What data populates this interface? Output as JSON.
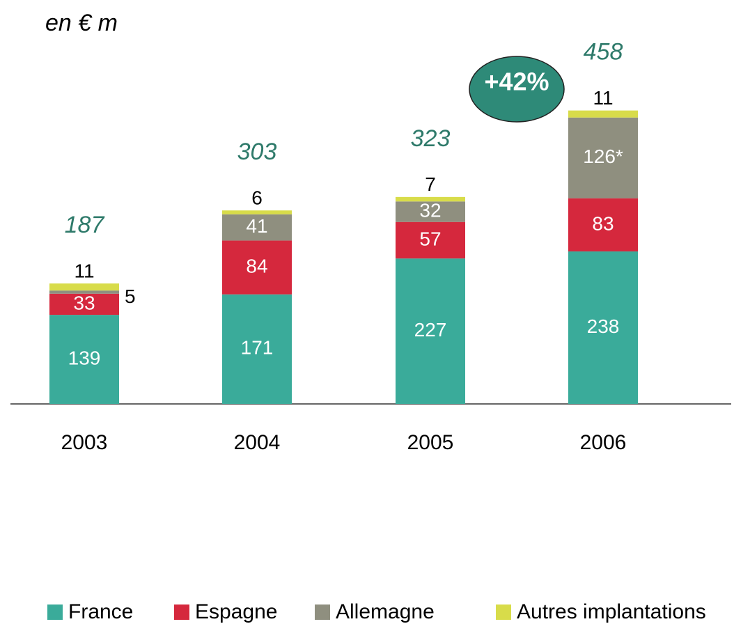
{
  "chart_data": {
    "type": "stacked_bar",
    "unit_label": "en € m",
    "categories": [
      "2003",
      "2004",
      "2005",
      "2006"
    ],
    "series": [
      {
        "name": "France",
        "color": "#3aab9a",
        "values": [
          139,
          171,
          227,
          238
        ]
      },
      {
        "name": "Espagne",
        "color": "#d5283d",
        "values": [
          33,
          84,
          57,
          83
        ]
      },
      {
        "name": "Allemagne",
        "color": "#8f8f7f",
        "values": [
          5,
          41,
          32,
          126
        ],
        "value_labels": [
          "5",
          "41",
          "32",
          "126*"
        ]
      },
      {
        "name": "Autres implantations",
        "color": "#d8dc4a",
        "values": [
          11,
          6,
          7,
          11
        ]
      }
    ],
    "totals": [
      187,
      303,
      323,
      458
    ],
    "annotation": "+42%"
  }
}
